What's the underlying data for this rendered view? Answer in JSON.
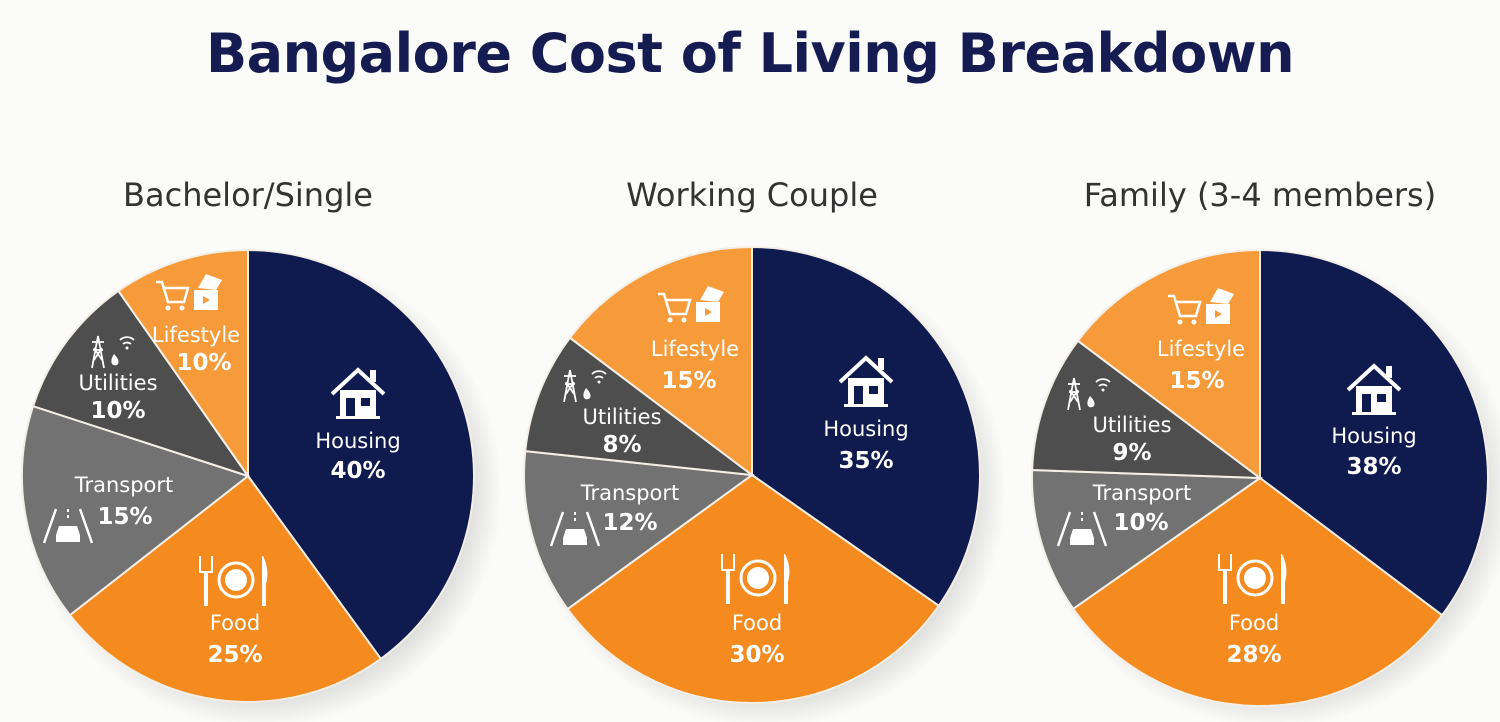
{
  "title": "Bangalore Cost of Living Breakdown",
  "colors": {
    "title": "#141c52",
    "housing": "#0f1a4f",
    "food": "#f58a1f",
    "lifestyle": "#f79a3a",
    "transport": "#727272",
    "utilities": "#4e4e4e",
    "text": "#ffffff"
  },
  "charts": [
    {
      "subtitle": "Bachelor/Single",
      "slices": [
        {
          "label": "Housing",
          "pct": "40%",
          "icon": "house-icon"
        },
        {
          "label": "Food",
          "pct": "25%",
          "icon": "plate-fork-knife-icon"
        },
        {
          "label": "Transport",
          "pct": "15%",
          "icon": "car-road-icon"
        },
        {
          "label": "Utilities",
          "pct": "10%",
          "icon": "power-tower-water-wifi-icon"
        },
        {
          "label": "Lifestyle",
          "pct": "10%",
          "icon": "cart-tickets-icon"
        }
      ]
    },
    {
      "subtitle": "Working Couple",
      "slices": [
        {
          "label": "Housing",
          "pct": "35%",
          "icon": "house-icon"
        },
        {
          "label": "Food",
          "pct": "30%",
          "icon": "plate-fork-knife-icon"
        },
        {
          "label": "Transport",
          "pct": "12%",
          "icon": "car-road-icon"
        },
        {
          "label": "Utilities",
          "pct": "8%",
          "icon": "power-tower-water-wifi-icon"
        },
        {
          "label": "Lifestyle",
          "pct": "15%",
          "icon": "cart-tickets-icon"
        }
      ]
    },
    {
      "subtitle": "Family (3-4 members)",
      "slices": [
        {
          "label": "Housing",
          "pct": "38%",
          "icon": "house-icon"
        },
        {
          "label": "Food",
          "pct": "28%",
          "icon": "plate-fork-knife-icon"
        },
        {
          "label": "Transport",
          "pct": "10%",
          "icon": "car-road-icon"
        },
        {
          "label": "Utilities",
          "pct": "9%",
          "icon": "power-tower-water-wifi-icon"
        },
        {
          "label": "Lifestyle",
          "pct": "15%",
          "icon": "cart-tickets-icon"
        }
      ]
    }
  ],
  "chart_data": [
    {
      "type": "pie",
      "title": "Bachelor/Single",
      "categories": [
        "Housing",
        "Food",
        "Transport",
        "Utilities",
        "Lifestyle"
      ],
      "values": [
        40,
        25,
        15,
        10,
        10
      ],
      "unit": "%"
    },
    {
      "type": "pie",
      "title": "Working Couple",
      "categories": [
        "Housing",
        "Food",
        "Transport",
        "Utilities",
        "Lifestyle"
      ],
      "values": [
        35,
        30,
        12,
        8,
        15
      ],
      "unit": "%"
    },
    {
      "type": "pie",
      "title": "Family (3-4 members)",
      "categories": [
        "Housing",
        "Food",
        "Transport",
        "Utilities",
        "Lifestyle"
      ],
      "values": [
        38,
        28,
        10,
        9,
        15
      ],
      "unit": "%"
    }
  ]
}
